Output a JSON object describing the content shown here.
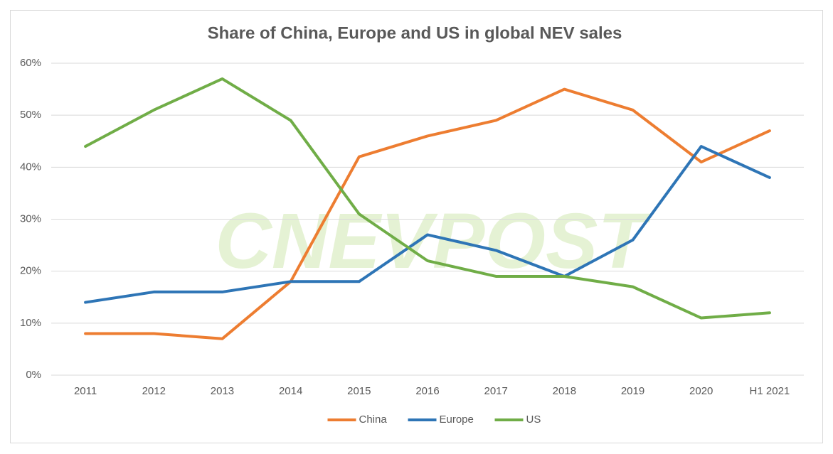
{
  "chart_data": {
    "type": "line",
    "title": "Share of China, Europe and US in global NEV sales",
    "watermark": "CNEVPOST",
    "categories": [
      "2011",
      "2012",
      "2013",
      "2014",
      "2015",
      "2016",
      "2017",
      "2018",
      "2019",
      "2020",
      "H1 2021"
    ],
    "series": [
      {
        "name": "China",
        "color": "#ed7d31",
        "values": [
          8,
          8,
          7,
          18,
          42,
          46,
          49,
          55,
          51,
          41,
          47
        ]
      },
      {
        "name": "Europe",
        "color": "#2e75b6",
        "values": [
          14,
          16,
          16,
          18,
          18,
          27,
          24,
          19,
          26,
          44,
          38
        ]
      },
      {
        "name": "US",
        "color": "#70ad47",
        "values": [
          44,
          51,
          57,
          49,
          31,
          22,
          19,
          19,
          17,
          11,
          12
        ]
      }
    ],
    "ylim": [
      0,
      60
    ],
    "yticks": [
      {
        "value": 0,
        "label": "0%"
      },
      {
        "value": 10,
        "label": "10%"
      },
      {
        "value": 20,
        "label": "20%"
      },
      {
        "value": 30,
        "label": "30%"
      },
      {
        "value": 40,
        "label": "40%"
      },
      {
        "value": 50,
        "label": "50%"
      },
      {
        "value": 60,
        "label": "60%"
      }
    ],
    "grid": true,
    "legend": "bottom"
  }
}
